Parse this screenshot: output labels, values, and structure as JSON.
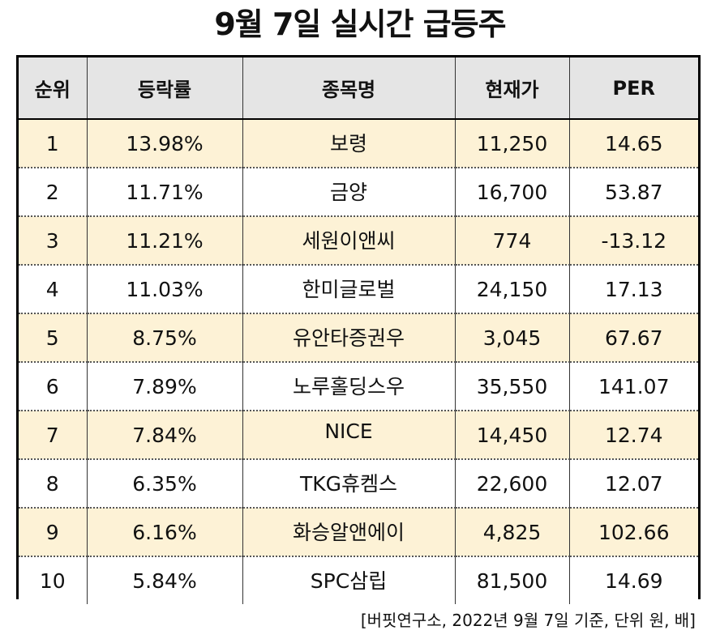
{
  "title": "9월 7일 실시간 급등주",
  "table": {
    "headers": [
      "순위",
      "등락률",
      "종목명",
      "현재가",
      "PER"
    ],
    "rows": [
      {
        "rank": "1",
        "change": "13.98%",
        "name": "보령",
        "price": "11,250",
        "per": "14.65"
      },
      {
        "rank": "2",
        "change": "11.71%",
        "name": "금양",
        "price": "16,700",
        "per": "53.87"
      },
      {
        "rank": "3",
        "change": "11.21%",
        "name": "세원이앤씨",
        "price": "774",
        "per": "-13.12"
      },
      {
        "rank": "4",
        "change": "11.03%",
        "name": "한미글로벌",
        "price": "24,150",
        "per": "17.13"
      },
      {
        "rank": "5",
        "change": "8.75%",
        "name": "유안타증권우",
        "price": "3,045",
        "per": "67.67"
      },
      {
        "rank": "6",
        "change": "7.89%",
        "name": "노루홀딩스우",
        "price": "35,550",
        "per": "141.07"
      },
      {
        "rank": "7",
        "change": "7.84%",
        "name": "NICE",
        "price": "14,450",
        "per": "12.74"
      },
      {
        "rank": "8",
        "change": "6.35%",
        "name": "TKG휴켐스",
        "price": "22,600",
        "per": "12.07"
      },
      {
        "rank": "9",
        "change": "6.16%",
        "name": "화승알앤에이",
        "price": "4,825",
        "per": "102.66"
      },
      {
        "rank": "10",
        "change": "5.84%",
        "name": "SPC삼립",
        "price": "81,500",
        "per": "14.69"
      }
    ]
  },
  "source": "[버핏연구소, 2022년 9월 7일 기준, 단위 원, 배]",
  "colors": {
    "header_bg": "#e5e5e5",
    "odd_row_bg": "#fdf2d6",
    "even_row_bg": "#ffffff",
    "border": "#000000"
  }
}
